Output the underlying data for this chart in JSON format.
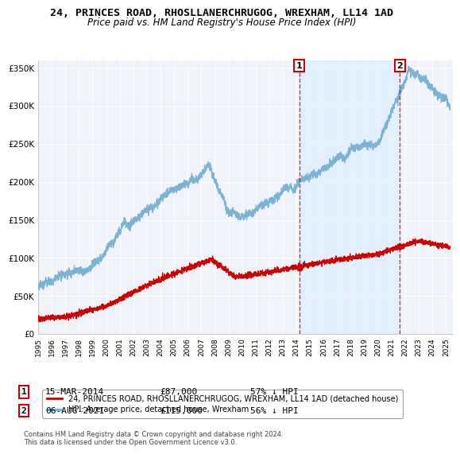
{
  "title_line1": "24, PRINCES ROAD, RHOSLLANERCHRUGOG, WREXHAM, LL14 1AD",
  "title_line2": "Price paid vs. HM Land Registry's House Price Index (HPI)",
  "ylabel_ticks": [
    "£0",
    "£50K",
    "£100K",
    "£150K",
    "£200K",
    "£250K",
    "£300K",
    "£350K"
  ],
  "ytick_values": [
    0,
    50000,
    100000,
    150000,
    200000,
    250000,
    300000,
    350000
  ],
  "ylim": [
    0,
    360000
  ],
  "xlim_start": 1995.0,
  "xlim_end": 2025.5,
  "hpi_color": "#7ab3d4",
  "hpi_fill_color": "#ddeeff",
  "chart_bg": "#f0f4fa",
  "price_color": "#cc0000",
  "point1_x": 2014.21,
  "point1_y": 87000,
  "point2_x": 2021.6,
  "point2_y": 115000,
  "vline_color": "#cc0000",
  "legend_label1": "24, PRINCES ROAD, RHOSLLANERCHRUGOG, WREXHAM, LL14 1AD (detached house)",
  "legend_label2": "HPI: Average price, detached house, Wrexham",
  "table_row1": [
    "1",
    "15-MAR-2014",
    "£87,000",
    "57% ↓ HPI"
  ],
  "table_row2": [
    "2",
    "06-AUG-2021",
    "£115,000",
    "56% ↓ HPI"
  ],
  "footnote": "Contains HM Land Registry data © Crown copyright and database right 2024.\nThis data is licensed under the Open Government Licence v3.0.",
  "grid_color": "#cccccc",
  "title_fontsize": 9.5,
  "subtitle_fontsize": 8.5
}
